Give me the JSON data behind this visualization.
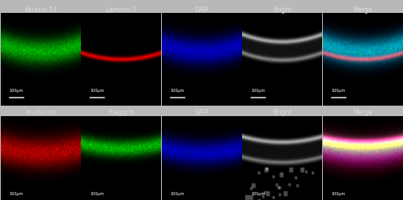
{
  "row1_labels": [
    "Keratin-14",
    "Laminin-5",
    "DAPI",
    "Bright",
    "Merge"
  ],
  "row2_labels": [
    "Involucrin",
    "Filaggrin",
    "DAPI",
    "Bright",
    "Merge"
  ],
  "scale_bar_text": "100μm",
  "panel_bg": "#000000",
  "outer_bg": "#b8b8b8",
  "label_color": "#dddddd",
  "label_fontsize": 5.5,
  "scale_fontsize": 3.5,
  "ncols": 5,
  "nrows": 2,
  "figsize": [
    4.98,
    2.48
  ],
  "dpi": 100
}
